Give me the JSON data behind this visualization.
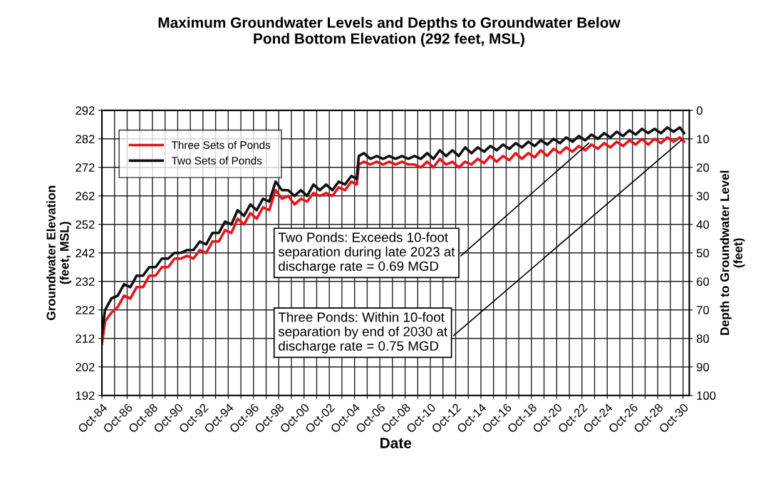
{
  "chart_data": {
    "type": "line",
    "title": "Maximum Groundwater Levels and Depths to Groundwater Below\nPond Bottom Elevation (292 feet, MSL)",
    "xlabel": "Date",
    "ylabel": "Groundwater Elevation\n(feet, MSL)",
    "y2label": "Depth to Groundwater Level\n(feet)",
    "x": [
      "1984-10",
      "1985-01",
      "1985-07",
      "1986-01",
      "1986-07",
      "1987-01",
      "1987-07",
      "1988-01",
      "1988-07",
      "1989-01",
      "1989-07",
      "1990-01",
      "1990-07",
      "1991-01",
      "1991-07",
      "1992-01",
      "1992-07",
      "1993-01",
      "1993-07",
      "1994-01",
      "1994-07",
      "1995-01",
      "1995-07",
      "1996-01",
      "1996-07",
      "1997-01",
      "1997-07",
      "1998-01",
      "1998-07",
      "1999-01",
      "1999-07",
      "2000-01",
      "2000-07",
      "2001-01",
      "2001-07",
      "2002-01",
      "2002-07",
      "2003-01",
      "2003-07",
      "2004-01",
      "2004-07",
      "2004-12",
      "2005-02",
      "2005-07",
      "2006-01",
      "2006-07",
      "2007-01",
      "2007-07",
      "2008-01",
      "2008-07",
      "2009-01",
      "2009-07",
      "2010-01",
      "2010-07",
      "2011-01",
      "2011-07",
      "2012-01",
      "2012-07",
      "2013-01",
      "2013-07",
      "2014-01",
      "2014-07",
      "2015-01",
      "2015-07",
      "2016-01",
      "2016-07",
      "2017-01",
      "2017-07",
      "2018-01",
      "2018-07",
      "2019-01",
      "2019-07",
      "2020-01",
      "2020-07",
      "2021-01",
      "2021-07",
      "2022-01",
      "2022-07",
      "2023-01",
      "2023-07",
      "2024-01",
      "2024-07",
      "2025-01",
      "2025-07",
      "2026-01",
      "2026-07",
      "2027-01",
      "2027-07",
      "2028-01",
      "2028-07",
      "2029-01",
      "2029-07",
      "2030-01",
      "2030-07",
      "2030-11"
    ],
    "series": [
      {
        "name": "Three Sets of Ponds",
        "color": "#e8141c",
        "values": [
          210,
          218,
          221,
          223,
          227,
          226,
          230,
          230,
          234,
          234,
          237,
          237,
          240,
          240,
          241,
          240,
          243,
          242,
          246,
          246,
          250,
          249,
          254,
          252,
          256,
          254,
          258,
          257,
          264,
          261,
          262,
          259,
          261,
          260,
          263,
          262,
          263,
          262,
          265,
          264,
          267,
          266,
          273,
          274,
          273,
          274,
          273,
          274,
          273,
          274,
          273,
          273,
          272,
          274,
          272,
          275,
          273,
          274,
          272,
          274,
          273,
          275,
          273.5,
          276,
          274,
          276,
          274.5,
          277,
          275,
          277,
          275.5,
          278,
          276,
          278.5,
          277,
          279,
          277.5,
          279.5,
          278,
          280,
          278.5,
          280.5,
          279,
          281,
          279.5,
          281.5,
          280,
          282,
          280,
          282,
          280.5,
          282.5,
          281,
          282.5,
          281
        ]
      },
      {
        "name": "Two Sets of Ponds",
        "color": "#111111",
        "values": [
          214,
          222,
          226,
          227,
          231,
          230,
          234,
          234,
          237,
          237,
          240,
          240,
          242,
          242,
          243,
          243,
          246,
          245,
          249,
          249,
          253,
          252,
          257,
          255,
          259,
          257,
          261,
          260,
          267,
          264,
          264,
          262,
          264,
          262,
          266,
          264,
          266,
          264,
          267,
          266,
          269,
          268,
          276,
          277,
          275,
          276,
          275,
          276,
          275,
          276,
          275,
          276,
          275,
          277,
          275,
          278,
          276,
          278,
          276,
          279,
          277,
          279,
          277.5,
          279.5,
          278,
          280,
          278.5,
          280.5,
          279,
          281,
          279.5,
          281.5,
          280,
          282,
          280.5,
          282.5,
          281,
          283,
          281.5,
          283.5,
          282,
          284,
          282.5,
          284.5,
          283,
          285,
          283.5,
          285.5,
          284,
          285.5,
          284,
          286,
          284.5,
          286,
          284
        ]
      }
    ],
    "xlim": [
      "1984-10",
      "2031-04"
    ],
    "xticks": [
      {
        "value": "1984-10",
        "label": "Oct-84"
      },
      {
        "value": "1985-10",
        "label": null
      },
      {
        "value": "1986-10",
        "label": "Oct-86"
      },
      {
        "value": "1987-10",
        "label": null
      },
      {
        "value": "1988-10",
        "label": "Oct-88"
      },
      {
        "value": "1989-10",
        "label": null
      },
      {
        "value": "1990-10",
        "label": "Oct-90"
      },
      {
        "value": "1991-10",
        "label": null
      },
      {
        "value": "1992-10",
        "label": "Oct-92"
      },
      {
        "value": "1993-10",
        "label": null
      },
      {
        "value": "1994-10",
        "label": "Oct-94"
      },
      {
        "value": "1995-10",
        "label": null
      },
      {
        "value": "1996-10",
        "label": "Oct-96"
      },
      {
        "value": "1997-10",
        "label": null
      },
      {
        "value": "1998-10",
        "label": "Oct-98"
      },
      {
        "value": "1999-10",
        "label": null
      },
      {
        "value": "2000-10",
        "label": "Oct-00"
      },
      {
        "value": "2001-10",
        "label": null
      },
      {
        "value": "2002-10",
        "label": "Oct-02"
      },
      {
        "value": "2003-10",
        "label": null
      },
      {
        "value": "2004-10",
        "label": "Oct-04"
      },
      {
        "value": "2005-10",
        "label": null
      },
      {
        "value": "2006-10",
        "label": "Oct-06"
      },
      {
        "value": "2007-10",
        "label": null
      },
      {
        "value": "2008-10",
        "label": "Oct-08"
      },
      {
        "value": "2009-10",
        "label": null
      },
      {
        "value": "2010-10",
        "label": "Oct-10"
      },
      {
        "value": "2011-10",
        "label": null
      },
      {
        "value": "2012-10",
        "label": "Oct-12"
      },
      {
        "value": "2013-10",
        "label": null
      },
      {
        "value": "2014-10",
        "label": "Oct-14"
      },
      {
        "value": "2015-10",
        "label": null
      },
      {
        "value": "2016-10",
        "label": "Oct-16"
      },
      {
        "value": "2017-10",
        "label": null
      },
      {
        "value": "2018-10",
        "label": "Oct-18"
      },
      {
        "value": "2019-10",
        "label": null
      },
      {
        "value": "2020-10",
        "label": "Oct-20"
      },
      {
        "value": "2021-10",
        "label": null
      },
      {
        "value": "2022-10",
        "label": "Oct-22"
      },
      {
        "value": "2023-10",
        "label": null
      },
      {
        "value": "2024-10",
        "label": "Oct-24"
      },
      {
        "value": "2025-10",
        "label": null
      },
      {
        "value": "2026-10",
        "label": "Oct-26"
      },
      {
        "value": "2027-10",
        "label": null
      },
      {
        "value": "2028-10",
        "label": "Oct-28"
      },
      {
        "value": "2029-10",
        "label": null
      },
      {
        "value": "2030-10",
        "label": "Oct-30"
      }
    ],
    "ylim": [
      192,
      292
    ],
    "yticks": [
      192,
      202,
      212,
      222,
      232,
      242,
      252,
      262,
      272,
      282,
      292
    ],
    "y2lim": [
      100,
      0
    ],
    "y2ticks": [
      100,
      90,
      80,
      70,
      60,
      50,
      40,
      30,
      20,
      10,
      0
    ],
    "grid": true,
    "legend": "top left",
    "annotations": [
      {
        "text": "Two Ponds: Exceeds 10-foot\nseparation during late 2023 at\ndischarge rate = 0.69 MGD",
        "x": "2023-06",
        "y": 281
      },
      {
        "text": "Three Ponds: Within 10-foot\nseparation by end of 2030 at\ndischarge rate = 0.75 MGD",
        "x": "2030-10",
        "y": 282
      }
    ]
  }
}
